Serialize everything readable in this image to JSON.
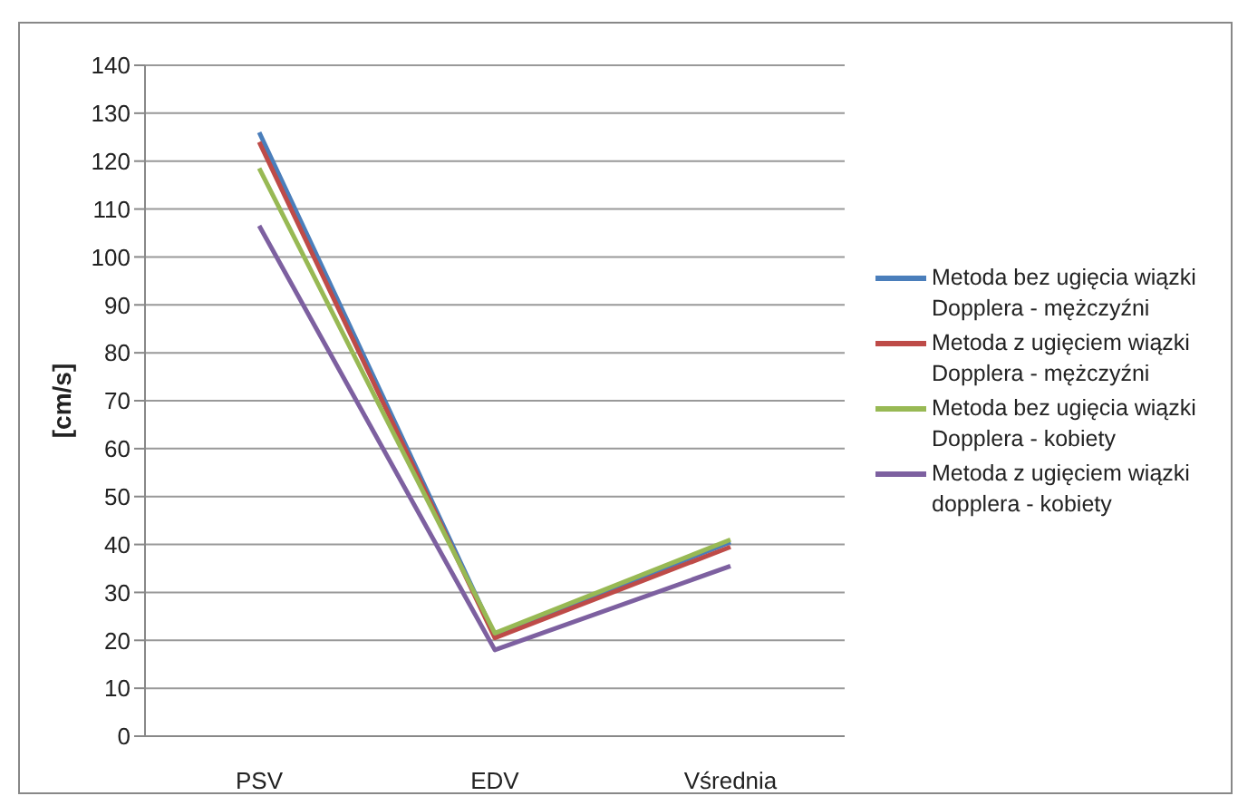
{
  "chart_data": {
    "type": "line",
    "ylabel": "[cm/s]",
    "categories": [
      "PSV",
      "EDV",
      "Vśrednia"
    ],
    "series": [
      {
        "name": "Metoda bez ugięcia wiązki Dopplera - mężczyźni",
        "color": "#4a7ebb",
        "values": [
          126,
          21,
          40.5
        ]
      },
      {
        "name": "Metoda z ugięciem wiązki Dopplera - mężczyźni",
        "color": "#be4b48",
        "values": [
          124,
          20.5,
          39.5
        ]
      },
      {
        "name": "Metoda bez ugięcia wiązki Dopplera - kobiety",
        "color": "#98b954",
        "values": [
          118.5,
          21.5,
          41
        ]
      },
      {
        "name": "Metoda z ugięciem wiązki dopplera - kobiety",
        "color": "#7d60a0",
        "values": [
          106.5,
          18,
          35.5
        ]
      }
    ],
    "ylim": [
      0,
      140
    ],
    "yticks": [
      0,
      10,
      20,
      30,
      40,
      50,
      60,
      70,
      80,
      90,
      100,
      110,
      120,
      130,
      140
    ],
    "grid": "y",
    "legend": "right",
    "marker": "none",
    "line_style": "solid"
  }
}
